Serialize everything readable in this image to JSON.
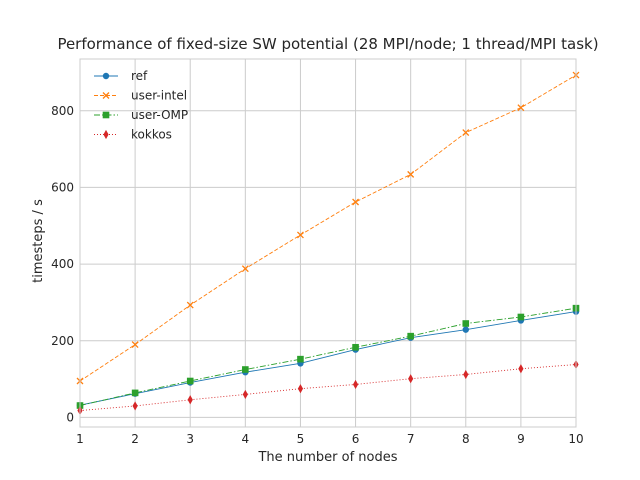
{
  "chart_data": {
    "type": "line",
    "title": "Performance of fixed-size SW potential (28 MPI/node; 1 thread/MPI task)",
    "xlabel": "The number of nodes",
    "ylabel": "timesteps / s",
    "x": [
      1,
      2,
      3,
      4,
      5,
      6,
      7,
      8,
      9,
      10
    ],
    "xlim": [
      1,
      10
    ],
    "ylim": [
      -25,
      935
    ],
    "xticks": [
      1,
      2,
      3,
      4,
      5,
      6,
      7,
      8,
      9,
      10
    ],
    "yticks": [
      0,
      200,
      400,
      600,
      800
    ],
    "grid": true,
    "legend_position": "top-left",
    "series": [
      {
        "name": "ref",
        "color": "#1f77b4",
        "marker": "circle",
        "line_style": "solid",
        "values": [
          32,
          62,
          91,
          118,
          141,
          177,
          208,
          229,
          253,
          276
        ]
      },
      {
        "name": "user-intel",
        "color": "#ff7f0e",
        "marker": "x",
        "line_style": "dashed",
        "values": [
          95,
          190,
          293,
          388,
          476,
          562,
          634,
          743,
          808,
          893
        ]
      },
      {
        "name": "user-OMP",
        "color": "#2ca02c",
        "marker": "square",
        "line_style": "dashdot",
        "values": [
          31,
          64,
          95,
          125,
          152,
          183,
          212,
          245,
          262,
          285
        ]
      },
      {
        "name": "kokkos",
        "color": "#d62728",
        "marker": "diamond",
        "line_style": "dotted",
        "values": [
          18,
          30,
          46,
          60,
          75,
          86,
          101,
          112,
          127,
          138
        ]
      }
    ]
  }
}
